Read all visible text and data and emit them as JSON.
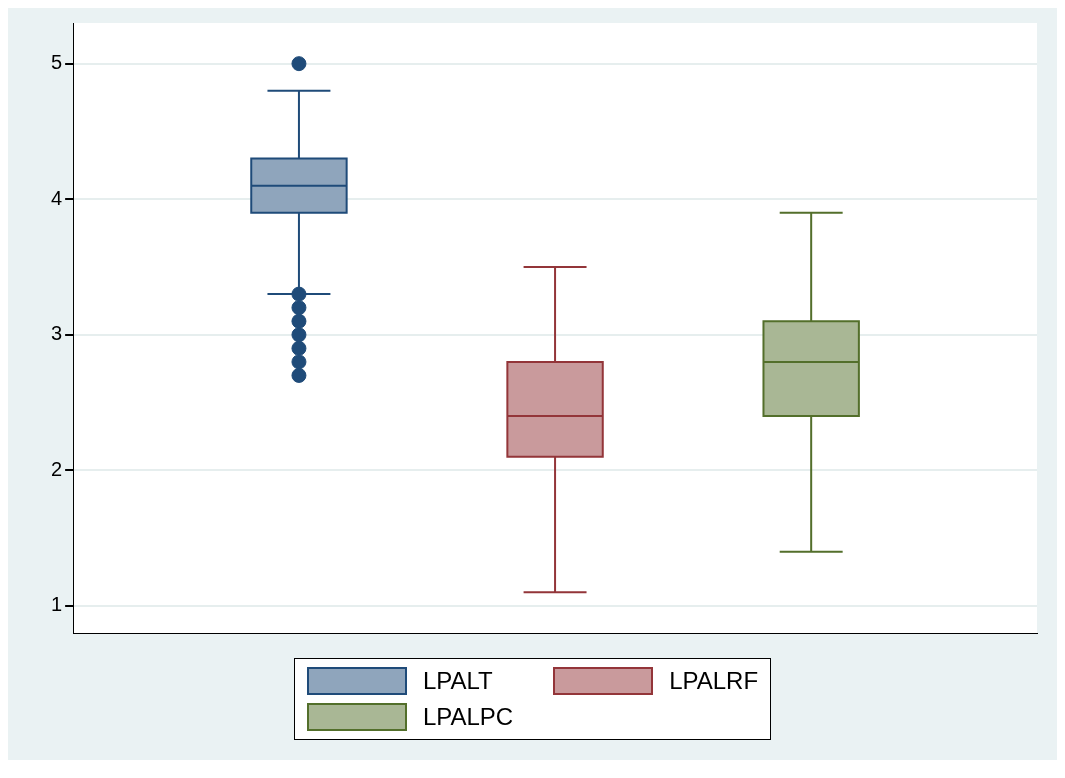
{
  "chart_data": {
    "type": "box",
    "categories": [
      null
    ],
    "ylim": [
      0.8,
      5.3
    ],
    "yticks": [
      1,
      2,
      3,
      4,
      5
    ],
    "grid": "y",
    "legend": "bottom",
    "series": [
      {
        "name": "LPALT",
        "color": "#8fa5bc",
        "boxes": [
          {
            "low": 3.3,
            "q1": 3.9,
            "median": 4.1,
            "q3": 4.3,
            "high": 4.8,
            "outliers": [
              5,
              3.3,
              3.2,
              3.1,
              3,
              2.9,
              2.8,
              2.7
            ]
          }
        ]
      },
      {
        "name": "LPALRF",
        "color": "#c99a9c",
        "boxes": [
          {
            "low": 1.1,
            "q1": 2.1,
            "median": 2.4,
            "q3": 2.8,
            "high": 3.5
          }
        ]
      },
      {
        "name": "LPALPC",
        "color": "#a9b795",
        "boxes": [
          {
            "low": 1.4,
            "q1": 2.4,
            "median": 2.8,
            "q3": 3.1,
            "high": 3.9
          }
        ]
      }
    ]
  }
}
